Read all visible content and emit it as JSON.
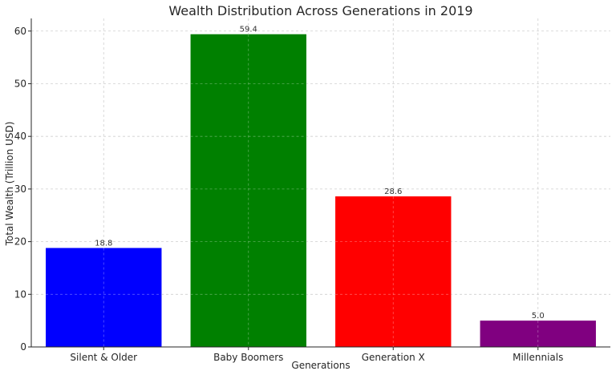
{
  "chart_data": {
    "type": "bar",
    "title": "Wealth Distribution Across Generations in 2019",
    "xlabel": "Generations",
    "ylabel": "Total Wealth (Trillion USD)",
    "categories": [
      "Silent & Older",
      "Baby Boomers",
      "Generation X",
      "Millennials"
    ],
    "values": [
      18.8,
      59.4,
      28.6,
      5.0
    ],
    "value_labels": [
      "18.8",
      "59.4",
      "28.6",
      "5.0"
    ],
    "colors": [
      "#0000ff",
      "#008000",
      "#ff0000",
      "#800080"
    ],
    "ylim": [
      0,
      62.4
    ],
    "yticks": [
      0,
      10,
      20,
      30,
      40,
      50,
      60
    ],
    "grid": true,
    "legend": "none"
  }
}
